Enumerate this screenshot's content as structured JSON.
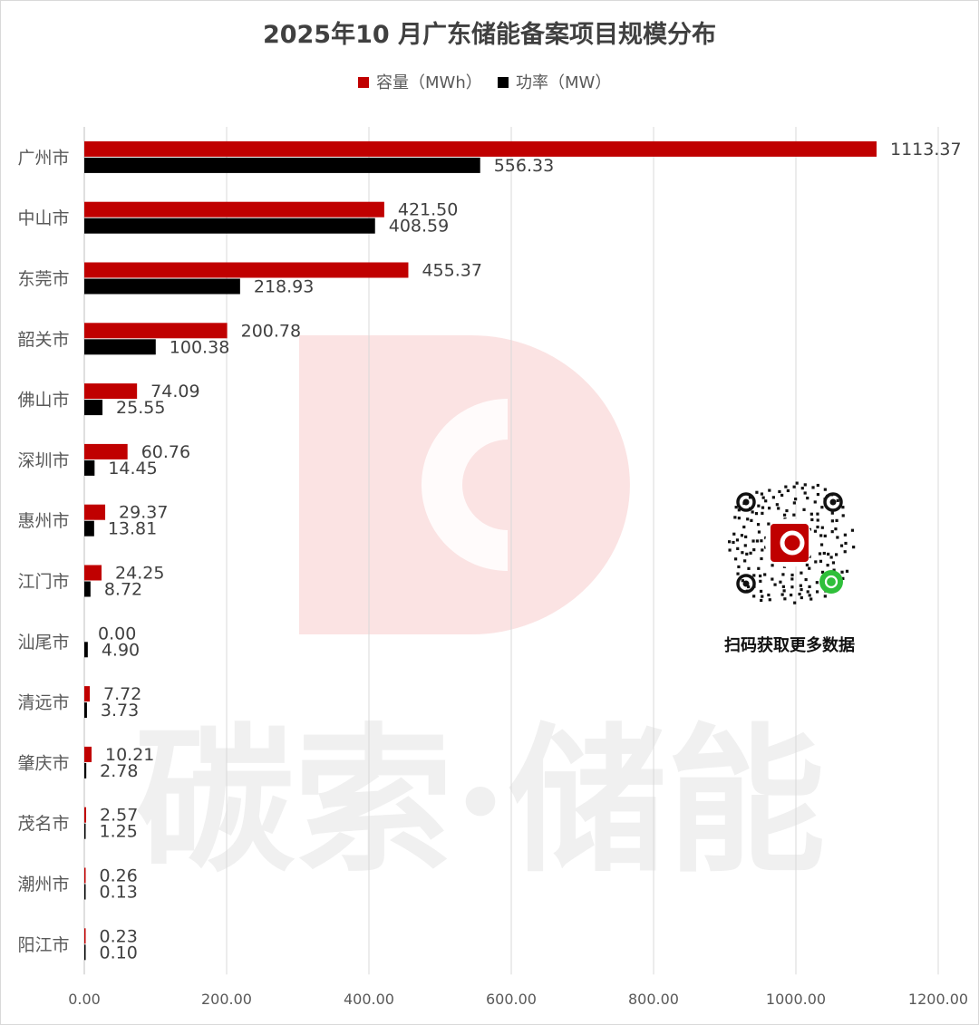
{
  "chart_data": {
    "type": "bar",
    "orientation": "horizontal",
    "title": "2025年10 月广东储能备案项目规模分布",
    "categories": [
      "广州市",
      "中山市",
      "东莞市",
      "韶关市",
      "佛山市",
      "深圳市",
      "惠州市",
      "江门市",
      "汕尾市",
      "清远市",
      "肇庆市",
      "茂名市",
      "潮州市",
      "阳江市"
    ],
    "series": [
      {
        "name": "容量（MWh）",
        "color": "#c00000",
        "values": [
          1113.37,
          421.5,
          455.37,
          200.78,
          74.09,
          60.76,
          29.37,
          24.25,
          0.0,
          7.72,
          10.21,
          2.57,
          0.26,
          0.23
        ],
        "labels": [
          "1113.37",
          "421.50",
          "455.37",
          "200.78",
          "74.09",
          "60.76",
          "29.37",
          "24.25",
          "0.00",
          "7.72",
          "10.21",
          "2.57",
          "0.26",
          "0.23"
        ]
      },
      {
        "name": "功率（MW）",
        "color": "#000000",
        "values": [
          556.33,
          408.59,
          218.93,
          100.38,
          25.55,
          14.45,
          13.81,
          8.72,
          4.9,
          3.73,
          2.78,
          1.25,
          0.13,
          0.1
        ],
        "labels": [
          "556.33",
          "408.59",
          "218.93",
          "100.38",
          "25.55",
          "14.45",
          "13.81",
          "8.72",
          "4.90",
          "3.73",
          "2.78",
          "1.25",
          "0.13",
          "0.10"
        ]
      }
    ],
    "xlim": [
      0,
      1200
    ],
    "xticks": [
      "0.00",
      "200.00",
      "400.00",
      "600.00",
      "800.00",
      "1000.00",
      "1200.00"
    ],
    "grid": "vertical",
    "legend": "top"
  },
  "watermark": {
    "text": "碳索·储能",
    "color": "#f0f0f0",
    "logo_color": "#fbe3e3"
  },
  "qr": {
    "caption": "扫码获取更多数据",
    "logo_color": "#c00000",
    "badge_color": "#2fbf3a"
  }
}
